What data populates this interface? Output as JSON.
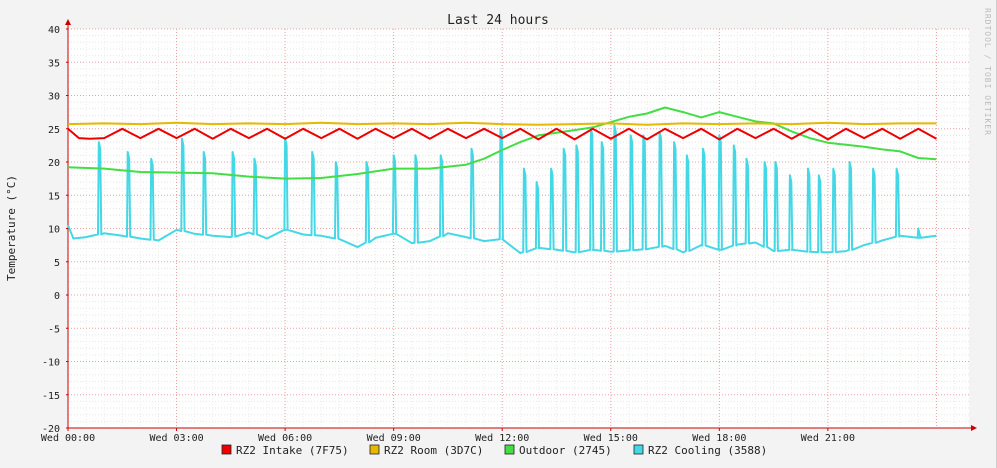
{
  "chart_data": {
    "type": "line",
    "title": "Last 24 hours",
    "ylabel": "Temperature (°C)",
    "watermark": "RRDTOOL / TOBI OETIKER",
    "ylim": [
      -20,
      40
    ],
    "ytick_step": 5,
    "grid": true,
    "legend_position": "bottom",
    "xlim": [
      0,
      24.9
    ],
    "xticks": [
      {
        "x": 0,
        "label": "Wed 00:00"
      },
      {
        "x": 3,
        "label": "Wed 03:00"
      },
      {
        "x": 6,
        "label": "Wed 06:00"
      },
      {
        "x": 9,
        "label": "Wed 09:00"
      },
      {
        "x": 12,
        "label": "Wed 12:00"
      },
      {
        "x": 15,
        "label": "Wed 15:00"
      },
      {
        "x": 18,
        "label": "Wed 18:00"
      },
      {
        "x": 21,
        "label": "Wed 21:00"
      }
    ],
    "series": [
      {
        "name": "RZ2 Intake (7F75)",
        "color": "#ee0000",
        "x": [
          0,
          0.3,
          0.6,
          1,
          1.5,
          2,
          2.5,
          3,
          3.5,
          4,
          4.5,
          5,
          5.5,
          6,
          6.5,
          7,
          7.5,
          8,
          8.5,
          9,
          9.5,
          10,
          10.5,
          11,
          11.5,
          12,
          12.5,
          13,
          13.5,
          14,
          14.5,
          15,
          15.5,
          16,
          16.5,
          17,
          17.5,
          18,
          18.5,
          19,
          19.5,
          20,
          20.5,
          21,
          21.5,
          22,
          22.5,
          23,
          23.5,
          24
        ],
        "y": [
          25,
          23.6,
          23.5,
          23.6,
          25,
          23.6,
          25,
          23.6,
          25,
          23.5,
          25,
          23.6,
          25,
          23.5,
          25,
          23.6,
          25,
          23.5,
          25,
          23.6,
          25,
          23.5,
          25,
          23.6,
          25,
          23.6,
          25,
          23.4,
          25,
          23.4,
          25,
          23.5,
          25,
          23.4,
          25,
          23.6,
          25,
          23.4,
          25,
          23.6,
          25,
          23.5,
          25,
          23.4,
          25,
          23.6,
          25,
          23.5,
          25,
          23.5
        ]
      },
      {
        "name": "RZ2 Room (3D7C)",
        "color": "#e6b800",
        "x": [
          0,
          1,
          2,
          3,
          4,
          5,
          6,
          7,
          8,
          9,
          10,
          11,
          12,
          13,
          14,
          15,
          16,
          17,
          18,
          19,
          20,
          21,
          22,
          23,
          24
        ],
        "y": [
          25.7,
          25.8,
          25.7,
          25.9,
          25.7,
          25.8,
          25.7,
          25.9,
          25.7,
          25.8,
          25.7,
          25.9,
          25.7,
          25.6,
          25.7,
          25.8,
          25.6,
          25.8,
          25.7,
          25.8,
          25.7,
          25.9,
          25.7,
          25.8,
          25.8
        ]
      },
      {
        "name": "Outdoor (2745)",
        "color": "#44dd44",
        "x": [
          0,
          1,
          2,
          3,
          4,
          5,
          6,
          7,
          8,
          9,
          10,
          11,
          11.5,
          12,
          12.5,
          13,
          13.5,
          14,
          14.5,
          15,
          15.5,
          16,
          16.5,
          17,
          17.5,
          18,
          18.5,
          19,
          19.5,
          20,
          20.5,
          21,
          21.5,
          22,
          22.5,
          23,
          23.5,
          24
        ],
        "y": [
          19.2,
          19,
          18.5,
          18.4,
          18.3,
          17.8,
          17.5,
          17.6,
          18.2,
          19,
          19,
          19.6,
          20.5,
          21.8,
          23,
          24,
          24.4,
          24.8,
          25.2,
          26,
          26.8,
          27.3,
          28.2,
          27.5,
          26.7,
          27.5,
          26.8,
          26.1,
          25.8,
          24.6,
          23.6,
          22.9,
          22.6,
          22.3,
          21.9,
          21.6,
          20.6,
          20.4
        ]
      },
      {
        "name": "RZ2 Cooling (3588)",
        "color": "#44d8e6",
        "x": [
          0,
          0.15,
          0.5,
          1,
          1.5,
          2,
          2.5,
          3,
          3.5,
          4,
          4.5,
          5,
          5.5,
          6,
          6.5,
          7,
          7.5,
          8,
          8.5,
          9,
          9.5,
          10,
          10.5,
          11,
          11.5,
          12,
          12.5,
          13,
          13.5,
          14,
          14.5,
          15,
          15.5,
          16,
          16.5,
          17,
          17.5,
          18,
          18.5,
          19,
          19.5,
          20,
          20.5,
          21,
          21.5,
          22,
          22.5,
          23,
          23.5,
          24
        ],
        "y": [
          10.5,
          8.5,
          8.7,
          9.3,
          8.9,
          8.5,
          8.2,
          9.8,
          9.2,
          8.9,
          8.7,
          9.4,
          8.5,
          9.8,
          9.1,
          8.9,
          8.4,
          7.2,
          8.6,
          9.2,
          7.8,
          8.1,
          9.3,
          8.7,
          8.1,
          8.4,
          6.3,
          7.1,
          6.8,
          6.4,
          6.8,
          6.5,
          6.7,
          6.9,
          7.4,
          6.4,
          7.5,
          6.8,
          7.6,
          7.9,
          6.6,
          6.8,
          6.5,
          6.4,
          6.6,
          7.5,
          8.2,
          8.9,
          8.6,
          8.9
        ],
        "spikes_x": [
          0.85,
          1.65,
          2.3,
          3.15,
          3.75,
          4.55,
          5.15,
          6.0,
          6.75,
          7.4,
          8.25,
          9.0,
          9.6,
          10.3,
          11.15,
          11.95,
          12.6,
          12.95,
          13.35,
          13.7,
          14.05,
          14.45,
          14.75,
          15.1,
          15.55,
          15.9,
          16.35,
          16.75,
          17.1,
          17.55,
          18.0,
          18.4,
          18.75,
          19.25,
          19.55,
          19.95,
          20.45,
          20.75,
          21.15,
          21.6,
          22.25,
          22.9,
          23.5
        ],
        "spikes_y": [
          23,
          21.5,
          20.5,
          23.5,
          21.5,
          21.5,
          20.5,
          23.5,
          21.5,
          20,
          20,
          21,
          21,
          21,
          22,
          25,
          19,
          17,
          19,
          22,
          22.5,
          25,
          23,
          25.5,
          24,
          24,
          24.5,
          23,
          21,
          22,
          24,
          22.5,
          20.5,
          20,
          20,
          18,
          19,
          18,
          19,
          20,
          19,
          19,
          10
        ]
      }
    ]
  }
}
